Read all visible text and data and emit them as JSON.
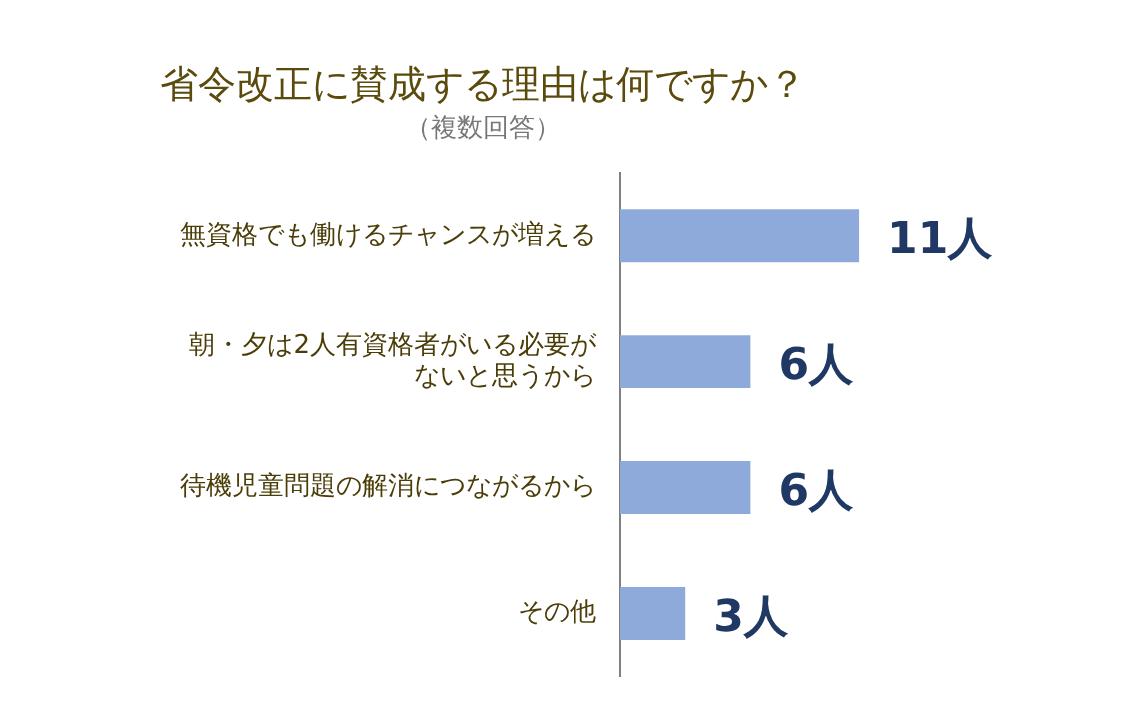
{
  "chart_data": {
    "type": "bar",
    "orientation": "horizontal",
    "title": "省令改正に賛成する理由は何ですか？",
    "subtitle": "（複数回答）",
    "categories": [
      "無資格でも働けるチャンスが増える",
      "朝・夕は2人有資格者がいる必要がないと思うから",
      "待機児童問題の解消につながるから",
      "その他"
    ],
    "values": [
      11,
      6,
      6,
      3
    ],
    "value_labels": [
      "11人",
      "6人",
      "6人",
      "3人"
    ],
    "color": "#8eaadb",
    "grid": false,
    "legend": false,
    "tick_labels": "y"
  }
}
